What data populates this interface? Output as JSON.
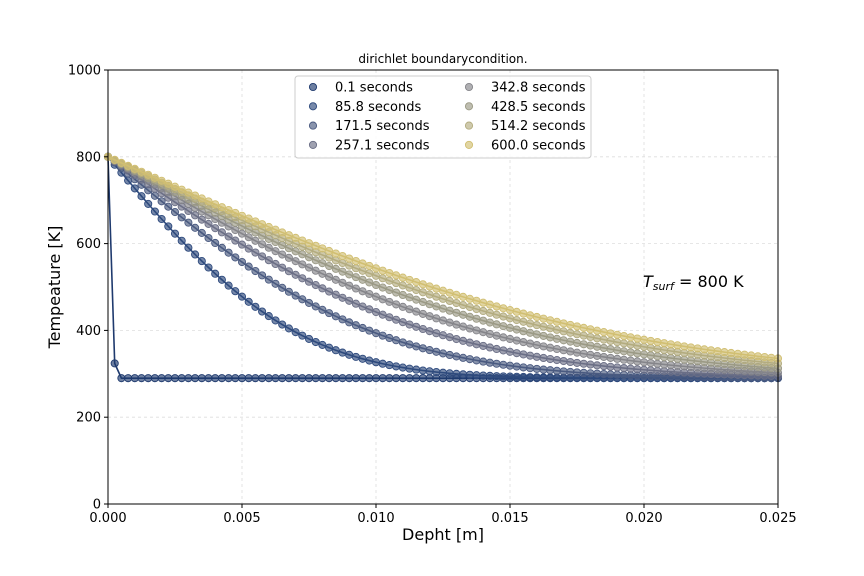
{
  "chart_data": {
    "type": "scatter",
    "title": "dirichlet boundarycondition.",
    "xlabel": "Depht [m]",
    "ylabel": "Tempeature [K]",
    "xlim": [
      0,
      0.025
    ],
    "ylim": [
      0,
      1000
    ],
    "xticks": [
      0,
      0.005,
      0.01,
      0.015,
      0.02,
      0.025
    ],
    "xtick_labels": [
      "0.000",
      "0.005",
      "0.010",
      "0.015",
      "0.020",
      "0.025"
    ],
    "yticks": [
      0,
      200,
      400,
      600,
      800,
      1000
    ],
    "ytick_labels": [
      "0",
      "200",
      "400",
      "600",
      "800",
      "1000"
    ],
    "grid": true,
    "legend_position": "top-center",
    "legend_columns": 2,
    "surface_temperature": 800,
    "initial_temperature": 290,
    "x_step": 0.00025,
    "annotation": {
      "math_base": "T",
      "math_sub": "surf",
      "text": " = 800 K"
    },
    "series": [
      {
        "name": "0.1 seconds",
        "time": 0.1,
        "color": "#1f3a6e"
      },
      {
        "name": "85.8 seconds",
        "time": 85.8,
        "color": "#2e4a7d"
      },
      {
        "name": "171.5 seconds",
        "time": 171.5,
        "color": "#4a5a80"
      },
      {
        "name": "257.1 seconds",
        "time": 257.1,
        "color": "#6b6f86"
      },
      {
        "name": "342.8 seconds",
        "time": 342.8,
        "color": "#85858a"
      },
      {
        "name": "428.5 seconds",
        "time": 428.5,
        "color": "#9b9a85"
      },
      {
        "name": "514.2 seconds",
        "time": 514.2,
        "color": "#b3ac7f"
      },
      {
        "name": "600.0 seconds",
        "time": 600.0,
        "color": "#d1bf72"
      }
    ]
  }
}
